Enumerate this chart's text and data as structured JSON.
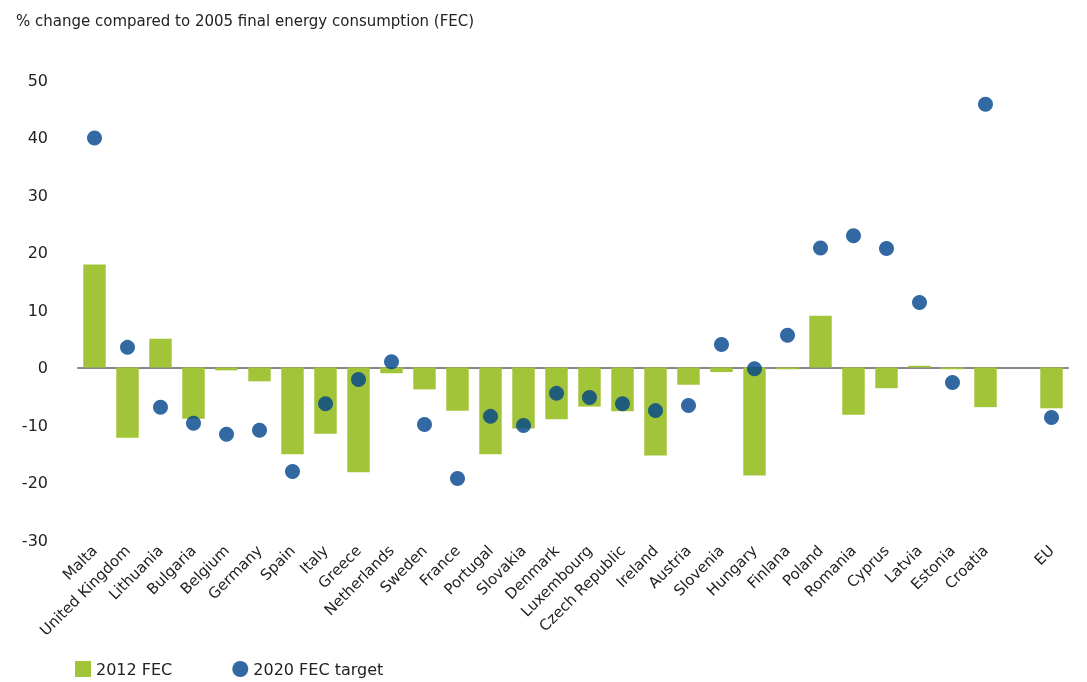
{
  "chart_data": {
    "type": "bar",
    "ylabel": "% change compared to 2005 final energy consumption (FEC)",
    "categories": [
      "Malta",
      "United Kingdom",
      "Lithuania",
      "Bulgaria",
      "Belgium",
      "Germany",
      "Spain",
      "Italy",
      "Greece",
      "Netherlands",
      "Sweden",
      "France",
      "Portugal",
      "Slovakia",
      "Denmark",
      "Luxembourg",
      "Czech Republic",
      "Ireland",
      "Austria",
      "Slovenia",
      "Hungary",
      "Finlana",
      "Poland",
      "Romania",
      "Cyprus",
      "Latvia",
      "Estonia",
      "Croatia",
      null,
      "EU"
    ],
    "series": [
      {
        "name": "2012 FEC",
        "color": "#a2c439",
        "values": [
          17.9,
          -12.2,
          5.0,
          -8.9,
          -0.5,
          -2.4,
          -15.1,
          -11.5,
          -18.2,
          -1.0,
          -3.8,
          -7.5,
          -15.1,
          -10.6,
          -9.0,
          -6.8,
          -7.6,
          -15.3,
          -3.0,
          -0.8,
          -18.8,
          -0.3,
          9.0,
          -8.2,
          -3.6,
          0.3,
          -0.3,
          -6.9,
          null,
          -7.1
        ]
      },
      {
        "name": "2020 FEC target",
        "type": "scatter",
        "color": "#00438c",
        "values": [
          39.9,
          3.5,
          -6.9,
          -9.7,
          -11.6,
          -10.9,
          -18.1,
          -6.3,
          -2.1,
          1.0,
          -9.9,
          -19.3,
          -8.5,
          -10.1,
          -4.5,
          -5.2,
          -6.3,
          -7.5,
          -6.6,
          4.0,
          -0.2,
          5.6,
          20.8,
          22.9,
          20.7,
          11.3,
          -2.6,
          45.8,
          null,
          -8.7
        ]
      }
    ],
    "ylim": [
      -30,
      50
    ],
    "yticks": [
      -30,
      -20,
      -10,
      0,
      10,
      20,
      30,
      40,
      50
    ],
    "legend": "bottom left",
    "marker": "circle"
  }
}
